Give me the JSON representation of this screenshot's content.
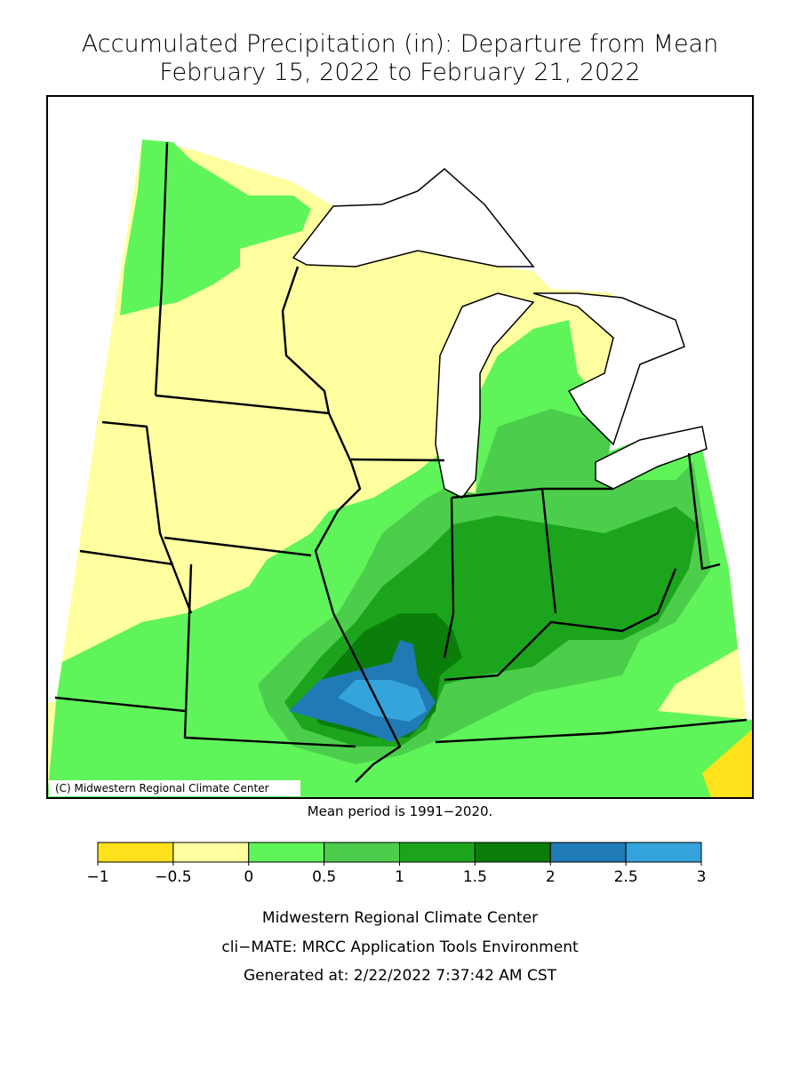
{
  "header": {
    "title": "Accumulated Precipitation (in): Departure from Mean",
    "subtitle": "February 15, 2022 to February 21, 2022"
  },
  "map": {
    "copyright": "(C) Midwestern Regional Climate Center",
    "note": "Mean period is 1991−2020."
  },
  "colorbar": {
    "ticks": [
      {
        "value": -1,
        "label": "−1"
      },
      {
        "value": -0.5,
        "label": "−0.5"
      },
      0,
      0.5,
      1,
      1.5,
      2,
      2.5,
      3
    ],
    "colors": [
      "#ffe11c",
      "#ffffa0",
      "#5ff55a",
      "#4cce4c",
      "#1ca51c",
      "#0a7d0a",
      "#1f7ab5",
      "#35a3dc"
    ]
  },
  "footer": {
    "lines": [
      "Midwestern Regional Climate Center",
      "cli−MATE: MRCC Application Tools Environment",
      "Generated at: 2/22/2022 7:37:42 AM CST"
    ]
  }
}
